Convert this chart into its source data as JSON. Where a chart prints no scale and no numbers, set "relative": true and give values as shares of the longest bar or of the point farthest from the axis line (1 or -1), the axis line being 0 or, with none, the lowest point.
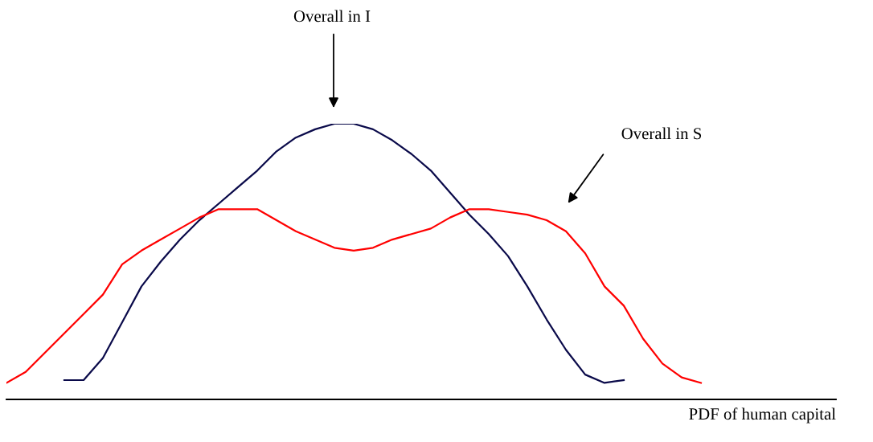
{
  "chart_data": {
    "type": "line",
    "relative": true,
    "xlabel": "PDF of human capital",
    "legend": false,
    "marker": "none",
    "line_style": "solid",
    "tick_labels": false,
    "categories": [
      null,
      null,
      null,
      null,
      null,
      null,
      null,
      null,
      null,
      null,
      null,
      null,
      null,
      null,
      null,
      null,
      null,
      null,
      null,
      null,
      null,
      null,
      null,
      null,
      null,
      null,
      null,
      null,
      null,
      null,
      null,
      null,
      null,
      null,
      null,
      null,
      null,
      null,
      null,
      null,
      null,
      null,
      null,
      null
    ],
    "series": [
      {
        "color": "#0a0a4a",
        "values": [
          null,
          null,
          null,
          0.07,
          0.07,
          0.15,
          0.28,
          0.41,
          0.5,
          0.58,
          0.65,
          0.71,
          0.77,
          0.83,
          0.9,
          0.95,
          0.98,
          1.0,
          1.0,
          0.98,
          0.94,
          0.89,
          0.83,
          0.75,
          0.67,
          0.6,
          0.52,
          0.41,
          0.29,
          0.18,
          0.09,
          0.06,
          0.07,
          null,
          null,
          null,
          null,
          null,
          null,
          null,
          null,
          null,
          null,
          null
        ]
      },
      {
        "color": "#ff0000",
        "values": [
          0.06,
          0.1,
          0.17,
          0.24,
          0.31,
          0.38,
          0.49,
          0.54,
          0.58,
          0.62,
          0.66,
          0.69,
          0.69,
          0.69,
          0.65,
          0.61,
          0.58,
          0.55,
          0.54,
          0.55,
          0.58,
          0.6,
          0.62,
          0.66,
          0.69,
          0.69,
          0.68,
          0.67,
          0.65,
          0.61,
          0.53,
          0.41,
          0.34,
          0.22,
          0.13,
          0.08,
          0.06,
          null,
          null,
          null,
          null,
          null,
          null,
          null
        ]
      }
    ],
    "annotations": [
      "Overall in I",
      "Overall in S"
    ]
  }
}
